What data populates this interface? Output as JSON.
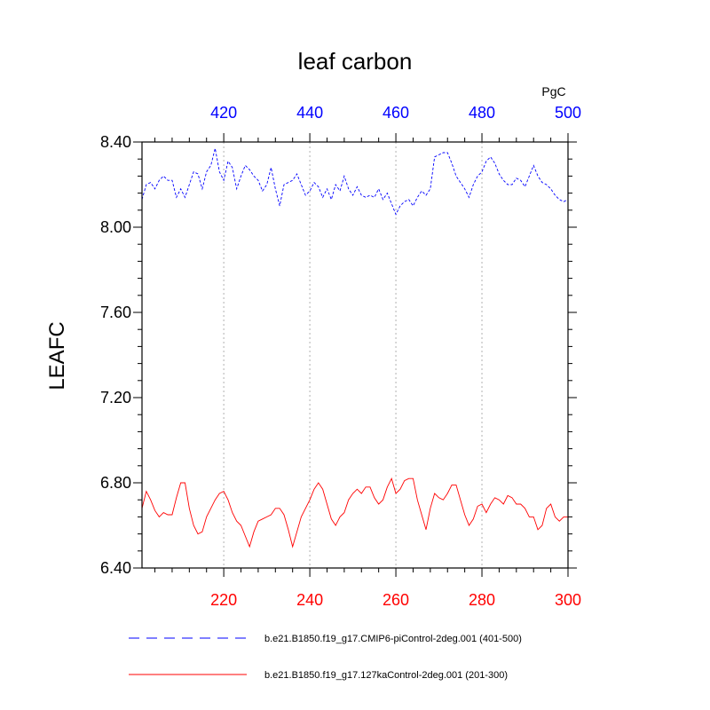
{
  "chart_data": {
    "type": "line",
    "title": "leaf carbon",
    "units": "PgC",
    "ylabel": "LEAFC",
    "ylim": [
      6.4,
      8.4
    ],
    "yticks": [
      6.4,
      6.8,
      7.2,
      7.6,
      8.0,
      8.4
    ],
    "ytick_labels": [
      "6.40",
      "6.80",
      "7.20",
      "7.60",
      "8.00",
      "8.40"
    ],
    "grid": "vertical-dotted",
    "x_bottom": {
      "range": [
        201,
        300
      ],
      "ticks": [
        220,
        240,
        260,
        280,
        300
      ],
      "tick_labels": [
        "220",
        "240",
        "260",
        "280",
        "300"
      ],
      "color": "#ff0000"
    },
    "x_top": {
      "range": [
        401,
        500
      ],
      "ticks": [
        420,
        440,
        460,
        480,
        500
      ],
      "tick_labels": [
        "420",
        "440",
        "460",
        "480",
        "500"
      ],
      "color": "#0000ff"
    },
    "legend_position": "bottom",
    "series": [
      {
        "name": "b.e21.B1850.f19_g17.CMIP6-piControl-2deg.001 (401-500)",
        "axis": "top",
        "color": "#0000ff",
        "style": "dashed",
        "x_start": 401,
        "values": [
          8.13,
          8.2,
          8.21,
          8.18,
          8.22,
          8.24,
          8.22,
          8.22,
          8.14,
          8.18,
          8.14,
          8.2,
          8.26,
          8.25,
          8.18,
          8.26,
          8.29,
          8.37,
          8.26,
          8.22,
          8.31,
          8.28,
          8.18,
          8.24,
          8.29,
          8.27,
          8.24,
          8.22,
          8.17,
          8.2,
          8.28,
          8.18,
          8.1,
          8.2,
          8.21,
          8.22,
          8.25,
          8.2,
          8.15,
          8.17,
          8.21,
          8.19,
          8.14,
          8.18,
          8.13,
          8.2,
          8.17,
          8.24,
          8.18,
          8.15,
          8.19,
          8.15,
          8.14,
          8.15,
          8.14,
          8.18,
          8.13,
          8.16,
          8.11,
          8.06,
          8.1,
          8.12,
          8.13,
          8.1,
          8.14,
          8.17,
          8.15,
          8.18,
          8.33,
          8.34,
          8.35,
          8.35,
          8.3,
          8.24,
          8.21,
          8.18,
          8.14,
          8.2,
          8.24,
          8.26,
          8.31,
          8.33,
          8.3,
          8.25,
          8.22,
          8.2,
          8.2,
          8.23,
          8.22,
          8.19,
          8.24,
          8.29,
          8.24,
          8.21,
          8.2,
          8.18,
          8.15,
          8.13,
          8.12,
          8.13
        ]
      },
      {
        "name": "b.e21.B1850.f19_g17.127kaControl-2deg.001 (201-300)",
        "axis": "bottom",
        "color": "#ff0000",
        "style": "solid",
        "x_start": 201,
        "values": [
          6.68,
          6.76,
          6.72,
          6.67,
          6.64,
          6.66,
          6.65,
          6.65,
          6.73,
          6.8,
          6.8,
          6.68,
          6.6,
          6.56,
          6.57,
          6.64,
          6.68,
          6.72,
          6.75,
          6.76,
          6.72,
          6.66,
          6.62,
          6.6,
          6.55,
          6.5,
          6.57,
          6.62,
          6.63,
          6.64,
          6.65,
          6.68,
          6.68,
          6.65,
          6.58,
          6.5,
          6.57,
          6.64,
          6.68,
          6.72,
          6.77,
          6.8,
          6.77,
          6.7,
          6.63,
          6.6,
          6.64,
          6.66,
          6.72,
          6.75,
          6.77,
          6.75,
          6.78,
          6.78,
          6.73,
          6.7,
          6.72,
          6.78,
          6.82,
          6.75,
          6.77,
          6.81,
          6.82,
          6.82,
          6.72,
          6.65,
          6.58,
          6.68,
          6.75,
          6.73,
          6.72,
          6.75,
          6.79,
          6.79,
          6.72,
          6.65,
          6.6,
          6.63,
          6.69,
          6.7,
          6.66,
          6.7,
          6.73,
          6.72,
          6.7,
          6.74,
          6.73,
          6.7,
          6.7,
          6.68,
          6.64,
          6.64,
          6.58,
          6.6,
          6.68,
          6.7,
          6.64,
          6.62,
          6.64,
          6.64
        ]
      }
    ]
  }
}
